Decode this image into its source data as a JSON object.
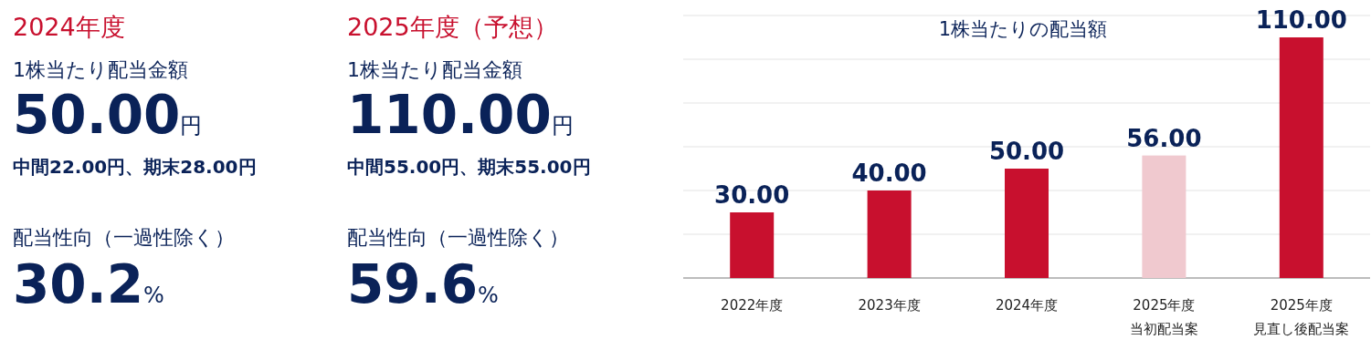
{
  "chart_data": [
    {
      "type": "other",
      "title": "2024年度",
      "annotations": [
        "1株当たり配当金額",
        "50.00円",
        "中間22.00円、期末28.00円",
        "配当性向（一過性除く）",
        "30.2%"
      ]
    },
    {
      "type": "other",
      "title": "2025年度（予想）",
      "annotations": [
        "1株当たり配当金額",
        "110.00円",
        "中間55.00円、期末55.00円",
        "配当性向（一過性除く）",
        "59.6%"
      ]
    },
    {
      "type": "bar",
      "title": "1株当たりの配当額",
      "categories": [
        "2022年度",
        "2023年度",
        "2024年度",
        "2025年度当初配当案",
        "2025年度見直し後配当案"
      ],
      "values": [
        30,
        40,
        50,
        56,
        110
      ],
      "colors": [
        "#c8102e",
        "#c8102e",
        "#c8102e",
        "#f0c9cf",
        "#c8102e"
      ],
      "ylim": [
        0,
        120
      ],
      "yticks": [
        {
          "value": 0,
          "label": null
        },
        {
          "value": 20,
          "label": null
        },
        {
          "value": 40,
          "label": null
        },
        {
          "value": 60,
          "label": null
        },
        {
          "value": 80,
          "label": null
        },
        {
          "value": 100,
          "label": null
        },
        {
          "value": 120,
          "label": null
        }
      ],
      "grid": "y",
      "data_labels": true,
      "value_labels": [
        "30.00",
        "40.00",
        "50.00",
        "56.00",
        "110.00"
      ],
      "tick_labels": "x"
    }
  ]
}
